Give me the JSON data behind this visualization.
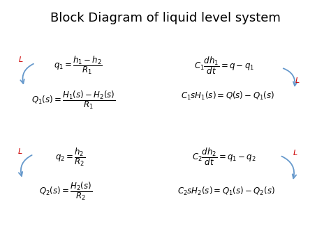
{
  "title": "Block Diagram of liquid level system",
  "title_fontsize": 13,
  "background_color": "#ffffff",
  "text_color": "#000000",
  "red_color": "#cc0000",
  "arrow_color": "#6699cc",
  "eq_fontsize": 8.5,
  "L_fontsize": 8,
  "equations": {
    "top_left_upper": "$q_1 = \\dfrac{h_1 - h_2}{R_1}$",
    "top_left_lower": "$Q_1(s) = \\dfrac{H_1(s) - H_2(s)}{R_1}$",
    "top_right_upper": "$C_1 \\dfrac{dh_1}{dt} = q - q_1$",
    "top_right_lower": "$C_1sH_1(s) = Q(s) - Q_1(s)$",
    "bot_left_upper": "$q_2 = \\dfrac{h_2}{R_2}$",
    "bot_left_lower": "$Q_2(s) = \\dfrac{H_2(s)}{R_2}$",
    "bot_right_upper": "$C_2 \\dfrac{dh_2}{dt} = q_1 - q_2$",
    "bot_right_lower": "$C_2sH_2(s) = Q_1(s) - Q_2(s)$"
  }
}
